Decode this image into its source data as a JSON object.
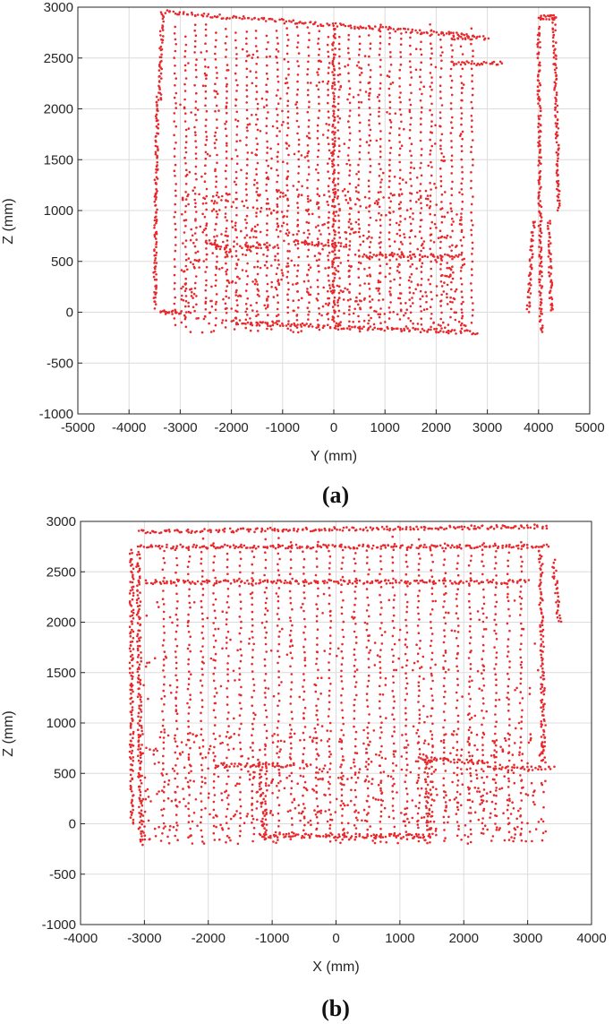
{
  "chart_data": [
    {
      "type": "scatter",
      "panel": "a",
      "caption": "(a)",
      "xlabel": "Y (mm)",
      "ylabel": "Z (mm)",
      "xlim": [
        -5000,
        5000
      ],
      "ylim": [
        -1000,
        3000
      ],
      "xticks": [
        -5000,
        -4000,
        -3000,
        -2000,
        -1000,
        0,
        1000,
        2000,
        3000,
        4000,
        5000
      ],
      "yticks": [
        -1000,
        -500,
        0,
        500,
        1000,
        1500,
        2000,
        2500,
        3000
      ],
      "grid": true,
      "color": "#e8282b",
      "series": [
        {
          "segments": [
            [
              -3300,
              2950,
              2700,
              2720
            ],
            [
              -3350,
              2950,
              -3400,
              2080
            ],
            [
              -3450,
              2100,
              -3500,
              50
            ],
            [
              -3400,
              0,
              -3000,
              0
            ],
            [
              -2000,
              -100,
              2800,
              -200
            ],
            [
              0,
              2800,
              0,
              -100
            ],
            [
              -2500,
              700,
              -2000,
              600
            ],
            [
              -1800,
              650,
              -1300,
              650
            ],
            [
              -800,
              680,
              300,
              660
            ],
            [
              500,
              560,
              2500,
              550
            ],
            [
              2300,
              2450,
              3300,
              2450
            ],
            [
              3000,
              2700,
              2300,
              2700
            ],
            [
              4000,
              2900,
              4350,
              2900
            ],
            [
              4000,
              2800,
              4050,
              -200
            ],
            [
              4300,
              2900,
              4400,
              1000
            ],
            [
              3900,
              900,
              3800,
              0
            ],
            [
              4200,
              900,
              4250,
              0
            ]
          ],
          "verticals_x": [
            -3100,
            -2900,
            -2700,
            -2500,
            -2300,
            -2100,
            -1900,
            -1700,
            -1500,
            -1300,
            -1100,
            -900,
            -700,
            -500,
            -300,
            -100,
            100,
            300,
            500,
            700,
            900,
            1100,
            1300,
            1500,
            1700,
            1900,
            2100,
            2300,
            2500,
            2700
          ],
          "scatter_region": [
            -3000,
            2600,
            -200,
            1200
          ]
        }
      ]
    },
    {
      "type": "scatter",
      "panel": "b",
      "caption": "(b)",
      "xlabel": "X (mm)",
      "ylabel": "Z (mm)",
      "xlim": [
        -4000,
        4000
      ],
      "ylim": [
        -1000,
        3000
      ],
      "xticks": [
        -4000,
        -3000,
        -2000,
        -1000,
        0,
        1000,
        2000,
        3000,
        4000
      ],
      "yticks": [
        -1000,
        -500,
        0,
        500,
        1000,
        1500,
        2000,
        2500,
        3000
      ],
      "grid": true,
      "color": "#e8282b",
      "series": [
        {
          "segments": [
            [
              -3100,
              2900,
              3300,
              2950
            ],
            [
              -3100,
              2750,
              3300,
              2750
            ],
            [
              -3200,
              2700,
              -3200,
              0
            ],
            [
              -3100,
              2700,
              -3050,
              -200
            ],
            [
              3200,
              2750,
              3250,
              600
            ],
            [
              3400,
              2600,
              3500,
              2000
            ],
            [
              -1200,
              -120,
              1400,
              -120
            ],
            [
              -1200,
              600,
              -1100,
              -150
            ],
            [
              1400,
              650,
              1450,
              -150
            ],
            [
              -1850,
              580,
              -700,
              580
            ],
            [
              1300,
              650,
              2400,
              600
            ],
            [
              2400,
              550,
              3400,
              550
            ],
            [
              -3000,
              2400,
              3000,
              2400
            ]
          ],
          "verticals_x": [
            -2700,
            -2500,
            -2300,
            -2100,
            -1900,
            -1700,
            -1500,
            -1300,
            -1100,
            -900,
            -700,
            -500,
            -300,
            -100,
            100,
            300,
            500,
            700,
            900,
            1100,
            1300,
            1500,
            1700,
            1900,
            2100,
            2300,
            2500,
            2700,
            2900
          ],
          "scatter_region": [
            -3100,
            3300,
            -200,
            900
          ]
        }
      ]
    }
  ]
}
